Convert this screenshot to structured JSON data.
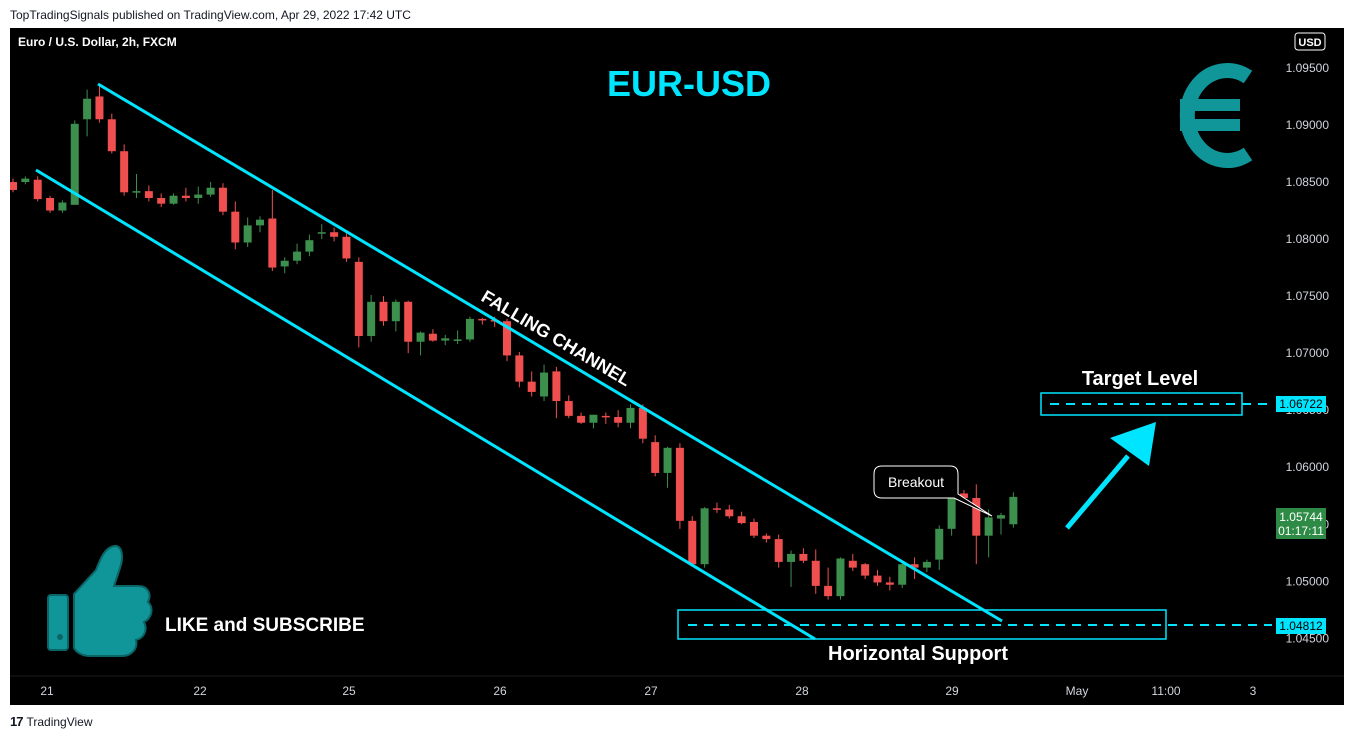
{
  "header": {
    "published_line": "TopTradingSignals published on TradingView.com, Apr 29, 2022 17:42 UTC"
  },
  "footer": {
    "logo_mark": "17",
    "brand": "TradingView"
  },
  "chart_data": {
    "type": "candlestick",
    "symbol_line": "Euro / U.S. Dollar, 2h, FXCM",
    "title": "EUR-USD",
    "currency_badge": "USD",
    "price_axis_ticks": [
      "1.09500",
      "1.09000",
      "1.08500",
      "1.08000",
      "1.07500",
      "1.07000",
      "1.06500",
      "1.06000",
      "1.05500",
      "1.05000",
      "1.04500"
    ],
    "price_axis_values": [
      1.095,
      1.09,
      1.085,
      1.08,
      1.075,
      1.07,
      1.065,
      1.06,
      1.055,
      1.05,
      1.045
    ],
    "ylim": [
      1.0417,
      1.0985
    ],
    "time_axis_ticks": [
      "21",
      "22",
      "25",
      "26",
      "27",
      "28",
      "29",
      "May",
      "11:00",
      "3"
    ],
    "current_price": {
      "value": "1.05744",
      "countdown": "01:17:11",
      "color": "#2e8b45"
    },
    "support_price": "1.04812",
    "target_price": "1.06722",
    "annotations": {
      "channel": "FALLING CHANNEL",
      "breakout": "Breakout",
      "target": "Target Level",
      "support": "Horizontal Support",
      "cta": "LIKE and SUBSCRIBE"
    },
    "colors": {
      "up": "#3d8f4e",
      "down": "#ef4f4f",
      "accent": "#00e5ff",
      "teal_icon": "#109598"
    },
    "candles": [
      [
        1.085,
        1.0853,
        1.0841,
        1.0843
      ],
      [
        1.085,
        1.0855,
        1.0848,
        1.0853
      ],
      [
        1.0852,
        1.0855,
        1.0833,
        1.0835
      ],
      [
        1.0836,
        1.0838,
        1.0823,
        1.0825
      ],
      [
        1.0825,
        1.0834,
        1.0823,
        1.0832
      ],
      [
        1.083,
        1.0904,
        1.083,
        1.0901
      ],
      [
        1.0905,
        1.0931,
        1.089,
        1.0923
      ],
      [
        1.0925,
        1.0935,
        1.0902,
        1.0905
      ],
      [
        1.0905,
        1.091,
        1.0875,
        1.0877
      ],
      [
        1.0877,
        1.0883,
        1.0838,
        1.0841
      ],
      [
        1.0841,
        1.0857,
        1.0836,
        1.0842
      ],
      [
        1.0842,
        1.0847,
        1.0833,
        1.0836
      ],
      [
        1.0836,
        1.084,
        1.0828,
        1.0831
      ],
      [
        1.0831,
        1.084,
        1.083,
        1.0838
      ],
      [
        1.0838,
        1.0845,
        1.0833,
        1.0836
      ],
      [
        1.0836,
        1.0846,
        1.0831,
        1.0839
      ],
      [
        1.0839,
        1.085,
        1.0837,
        1.0845
      ],
      [
        1.0845,
        1.0849,
        1.0821,
        1.0824
      ],
      [
        1.0824,
        1.0833,
        1.0791,
        1.0797
      ],
      [
        1.0797,
        1.0819,
        1.0793,
        1.0812
      ],
      [
        1.0812,
        1.082,
        1.0806,
        1.0817
      ],
      [
        1.0818,
        1.0843,
        1.0772,
        1.0775
      ],
      [
        1.0776,
        1.0784,
        1.077,
        1.0781
      ],
      [
        1.0781,
        1.0796,
        1.0778,
        1.0789
      ],
      [
        1.0789,
        1.0804,
        1.0785,
        1.0799
      ],
      [
        1.0805,
        1.0813,
        1.08,
        1.0806
      ],
      [
        1.0806,
        1.081,
        1.0798,
        1.0802
      ],
      [
        1.0802,
        1.0805,
        1.078,
        1.0783
      ],
      [
        1.078,
        1.0784,
        1.0705,
        1.0715
      ],
      [
        1.0715,
        1.0751,
        1.071,
        1.0745
      ],
      [
        1.0745,
        1.075,
        1.0724,
        1.0728
      ],
      [
        1.0728,
        1.0747,
        1.0719,
        1.0745
      ],
      [
        1.0745,
        1.0746,
        1.07,
        1.071
      ],
      [
        1.071,
        1.0719,
        1.0698,
        1.0718
      ],
      [
        1.0717,
        1.0721,
        1.071,
        1.0711
      ],
      [
        1.0711,
        1.0716,
        1.0707,
        1.0713
      ],
      [
        1.0711,
        1.072,
        1.0708,
        1.0712
      ],
      [
        1.0712,
        1.0732,
        1.071,
        1.073
      ],
      [
        1.073,
        1.0731,
        1.0725,
        1.0729
      ],
      [
        1.0729,
        1.0732,
        1.0723,
        1.0728
      ],
      [
        1.0728,
        1.073,
        1.0693,
        1.0698
      ],
      [
        1.0698,
        1.0701,
        1.067,
        1.0675
      ],
      [
        1.0675,
        1.0684,
        1.0662,
        1.0666
      ],
      [
        1.0662,
        1.069,
        1.0658,
        1.0683
      ],
      [
        1.0684,
        1.0688,
        1.0643,
        1.0658
      ],
      [
        1.0658,
        1.0663,
        1.0643,
        1.0645
      ],
      [
        1.0645,
        1.0648,
        1.0638,
        1.0639
      ],
      [
        1.0639,
        1.0646,
        1.0634,
        1.0646
      ],
      [
        1.0645,
        1.0648,
        1.0638,
        1.0644
      ],
      [
        1.0644,
        1.065,
        1.0635,
        1.0639
      ],
      [
        1.0639,
        1.0655,
        1.0634,
        1.0652
      ],
      [
        1.0652,
        1.0655,
        1.0621,
        1.0625
      ],
      [
        1.0622,
        1.0628,
        1.0592,
        1.0595
      ],
      [
        1.0595,
        1.0618,
        1.0582,
        1.0617
      ],
      [
        1.0617,
        1.0621,
        1.0546,
        1.0553
      ],
      [
        1.0553,
        1.0557,
        1.0513,
        1.0515
      ],
      [
        1.0515,
        1.0565,
        1.0512,
        1.0564
      ],
      [
        1.0564,
        1.0569,
        1.056,
        1.0563
      ],
      [
        1.0563,
        1.0567,
        1.0555,
        1.0557
      ],
      [
        1.0557,
        1.0561,
        1.055,
        1.0551
      ],
      [
        1.0552,
        1.0555,
        1.0538,
        1.054
      ],
      [
        1.054,
        1.0542,
        1.0534,
        1.0537
      ],
      [
        1.0537,
        1.0541,
        1.0512,
        1.0517
      ],
      [
        1.0517,
        1.0527,
        1.0495,
        1.0524
      ],
      [
        1.0524,
        1.0529,
        1.0516,
        1.0518
      ],
      [
        1.0518,
        1.0528,
        1.0489,
        1.0496
      ],
      [
        1.0496,
        1.0512,
        1.0484,
        1.0487
      ],
      [
        1.0487,
        1.0521,
        1.0484,
        1.052
      ],
      [
        1.0518,
        1.0524,
        1.0509,
        1.0512
      ],
      [
        1.0515,
        1.0516,
        1.0502,
        1.0505
      ],
      [
        1.0505,
        1.051,
        1.0496,
        1.0499
      ],
      [
        1.0499,
        1.0504,
        1.0492,
        1.0497
      ],
      [
        1.0497,
        1.0516,
        1.0494,
        1.0515
      ],
      [
        1.0515,
        1.0521,
        1.0502,
        1.0512
      ],
      [
        1.0512,
        1.0519,
        1.0508,
        1.0517
      ],
      [
        1.0519,
        1.0549,
        1.051,
        1.0546
      ],
      [
        1.0546,
        1.0584,
        1.054,
        1.0577
      ],
      [
        1.0577,
        1.058,
        1.057,
        1.0573
      ],
      [
        1.0573,
        1.0585,
        1.0515,
        1.054
      ],
      [
        1.054,
        1.0563,
        1.0521,
        1.0556
      ],
      [
        1.0555,
        1.056,
        1.0541,
        1.0558
      ],
      [
        1.055,
        1.0578,
        1.0547,
        1.0574
      ]
    ]
  }
}
